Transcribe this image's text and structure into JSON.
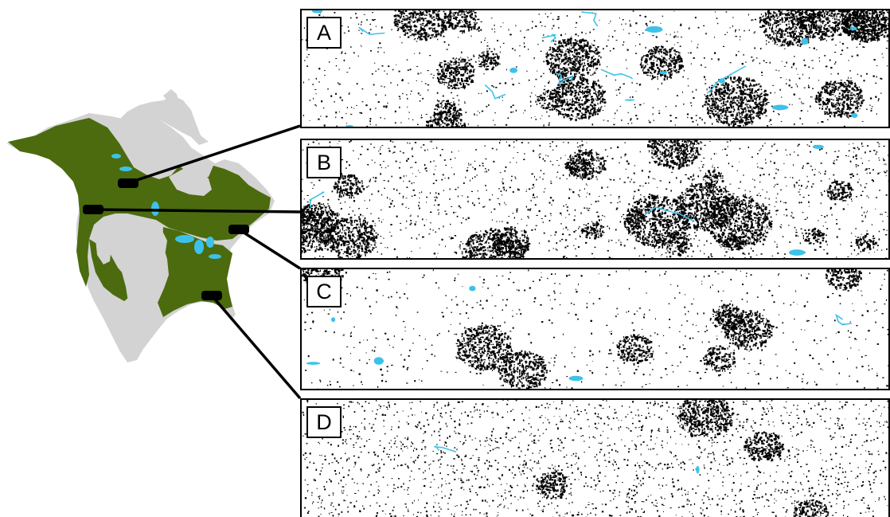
{
  "panels": [
    {
      "id": "A",
      "label": "A",
      "density": 0.15,
      "water": 0.09,
      "clusters": 16
    },
    {
      "id": "B",
      "label": "B",
      "density": 0.22,
      "water": 0.02,
      "clusters": 20
    },
    {
      "id": "C",
      "label": "C",
      "density": 0.1,
      "water": 0.03,
      "clusters": 8
    },
    {
      "id": "D",
      "label": "D",
      "density": 0.3,
      "water": 0.01,
      "clusters": 4
    }
  ],
  "colors": {
    "forest": "#4b6b0e",
    "land": "#d3d3d3",
    "water": "#3cc2ea",
    "marker": "#000000",
    "cover": "#000000"
  }
}
